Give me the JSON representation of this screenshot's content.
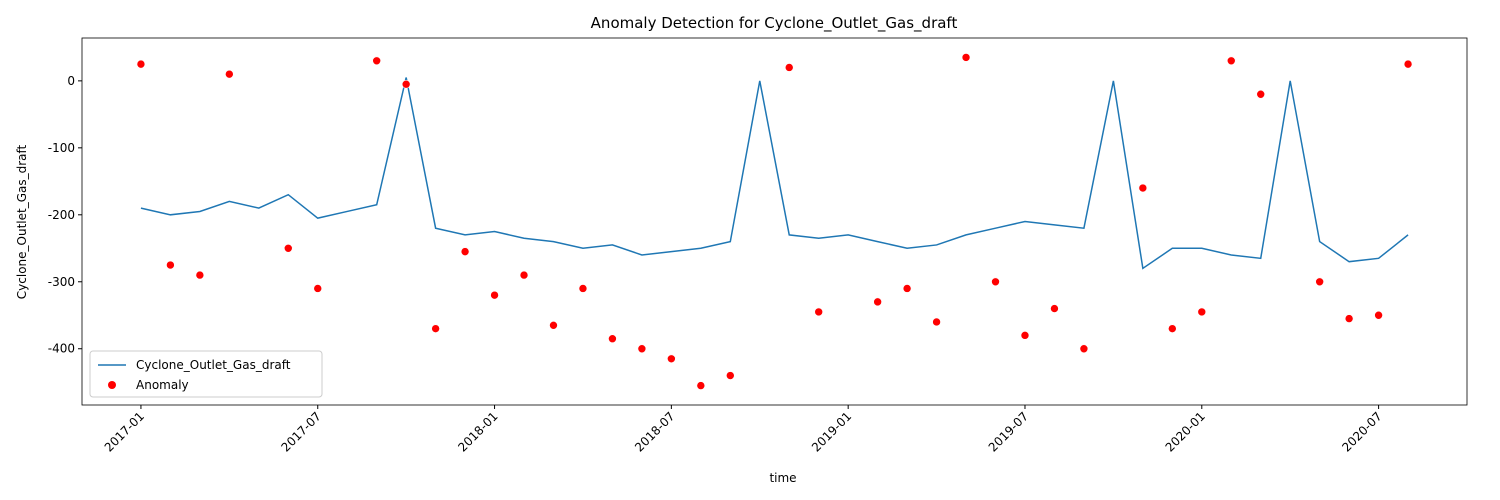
{
  "chart_data": {
    "type": "line",
    "title": "Anomaly Detection for Cyclone_Outlet_Gas_draft",
    "x_label": "time",
    "y_label": "Cyclone_Outlet_Gas_draft",
    "x": [
      "2017-01",
      "2017-02",
      "2017-03",
      "2017-04",
      "2017-05",
      "2017-06",
      "2017-07",
      "2017-08",
      "2017-09",
      "2017-10",
      "2017-11",
      "2017-12",
      "2018-01",
      "2018-02",
      "2018-03",
      "2018-04",
      "2018-05",
      "2018-06",
      "2018-07",
      "2018-08",
      "2018-09",
      "2018-10",
      "2018-11",
      "2018-12",
      "2019-01",
      "2019-02",
      "2019-03",
      "2019-04",
      "2019-05",
      "2019-06",
      "2019-07",
      "2019-08",
      "2019-09",
      "2019-10",
      "2019-11",
      "2019-12",
      "2020-01",
      "2020-02",
      "2020-03",
      "2020-04",
      "2020-05",
      "2020-06",
      "2020-07",
      "2020-08"
    ],
    "series": [
      {
        "name": "Cyclone_Outlet_Gas_draft",
        "color": "#1f77b4",
        "values": [
          -190,
          -200,
          -195,
          -180,
          -190,
          -170,
          -205,
          -195,
          -185,
          5,
          -220,
          -230,
          -225,
          -235,
          -240,
          -250,
          -245,
          -260,
          -255,
          -250,
          -240,
          0,
          -230,
          -235,
          -230,
          -240,
          -250,
          -245,
          -230,
          -220,
          -210,
          -215,
          -220,
          0,
          -280,
          -250,
          -250,
          -260,
          -265,
          0,
          -240,
          -270,
          -265,
          -230
        ]
      },
      {
        "name": "Anomaly",
        "color": "#ff0000",
        "type": "scatter",
        "x": [
          "2017-01",
          "2017-02",
          "2017-03",
          "2017-04",
          "2017-06",
          "2017-07",
          "2017-09",
          "2017-10",
          "2017-11",
          "2017-12",
          "2018-01",
          "2018-02",
          "2018-03",
          "2018-04",
          "2018-05",
          "2018-06",
          "2018-07",
          "2018-08",
          "2018-09",
          "2018-11",
          "2018-12",
          "2019-02",
          "2019-03",
          "2019-04",
          "2019-05",
          "2019-06",
          "2019-07",
          "2019-08",
          "2019-09",
          "2019-11",
          "2019-12",
          "2020-01",
          "2020-02",
          "2020-03",
          "2020-05",
          "2020-06",
          "2020-07",
          "2020-08"
        ],
        "values": [
          25,
          -275,
          -290,
          10,
          -250,
          -310,
          30,
          -5,
          -370,
          -255,
          -320,
          -290,
          -365,
          -310,
          -385,
          -400,
          -415,
          -455,
          -440,
          20,
          -345,
          -330,
          -310,
          -360,
          35,
          -300,
          -380,
          -340,
          -400,
          -160,
          -370,
          -345,
          30,
          -20,
          -300,
          -355,
          -350,
          25
        ]
      }
    ],
    "xlim": [
      "2016-11",
      "2020-10"
    ],
    "xticks": [
      "2017-01",
      "2017-07",
      "2018-01",
      "2018-07",
      "2019-01",
      "2019-07",
      "2020-01",
      "2020-07"
    ],
    "ylim": [
      -484,
      64
    ],
    "yticks": [
      -400,
      -300,
      -200,
      -100,
      0
    ],
    "legend": "lower left"
  }
}
